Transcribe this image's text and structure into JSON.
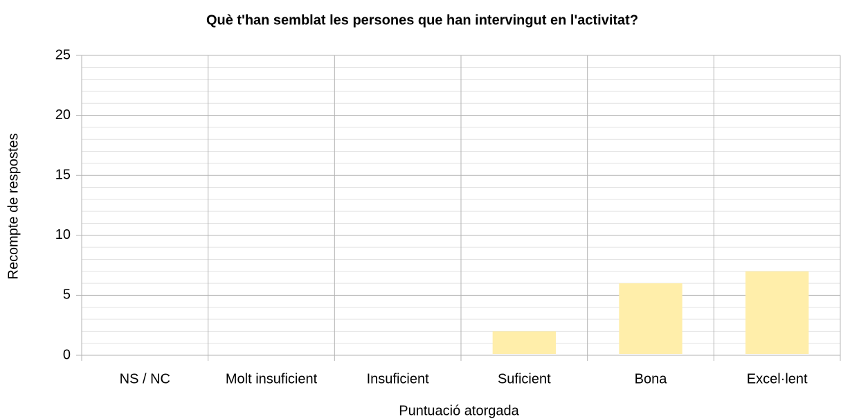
{
  "chart_data": {
    "type": "bar",
    "title": "Què t'han semblat les persones que han intervingut en l'activitat?",
    "x_label": "Puntuació atorgada",
    "y_label": "Recompte de respostes",
    "categories": [
      "NS / NC",
      "Molt insuficient",
      "Insuficient",
      "Suficient",
      "Bona",
      "Excel·lent"
    ],
    "values": [
      0,
      0,
      0,
      2,
      6,
      7
    ],
    "color": "#ffeeaa",
    "ylim": [
      0,
      25
    ],
    "yticks": [
      0,
      5,
      10,
      15,
      20,
      25
    ],
    "grid": true,
    "minor_grid": true
  }
}
